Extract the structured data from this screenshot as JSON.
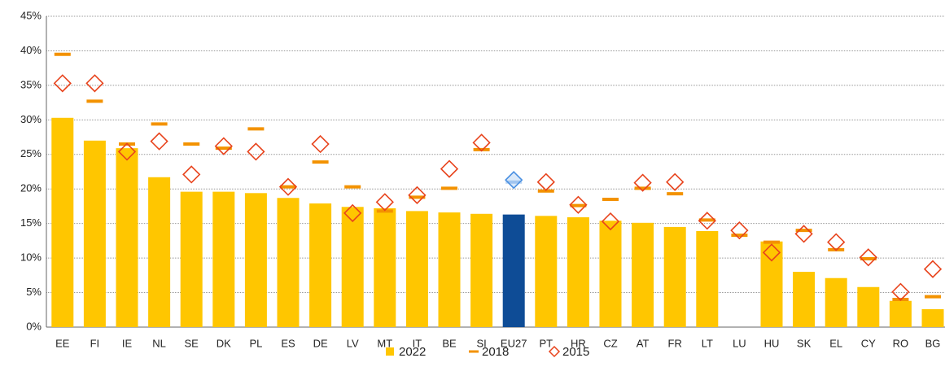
{
  "chart_data": {
    "type": "bar",
    "categories": [
      "EE",
      "FI",
      "IE",
      "NL",
      "SE",
      "DK",
      "PL",
      "ES",
      "DE",
      "LV",
      "MT",
      "IT",
      "BE",
      "SI",
      "EU27",
      "PT",
      "HR",
      "CZ",
      "AT",
      "FR",
      "LT",
      "LU",
      "HU",
      "SK",
      "EL",
      "CY",
      "RO",
      "BG"
    ],
    "series": [
      {
        "name": "2022",
        "kind": "bar",
        "color": "#ffc600",
        "values": [
          30.3,
          27.0,
          25.9,
          21.7,
          19.6,
          19.6,
          19.4,
          18.7,
          17.9,
          17.4,
          17.2,
          16.8,
          16.6,
          16.4,
          16.3,
          16.1,
          15.9,
          15.4,
          15.1,
          14.5,
          13.9,
          null,
          12.4,
          8.0,
          7.1,
          5.8,
          3.8,
          2.6
        ]
      },
      {
        "name": "2018",
        "kind": "dash",
        "color": "#f39200",
        "values": [
          39.5,
          32.7,
          26.5,
          29.4,
          26.5,
          25.9,
          28.7,
          20.3,
          23.9,
          20.3,
          16.8,
          18.8,
          20.1,
          25.7,
          21.0,
          19.7,
          17.6,
          18.5,
          20.1,
          19.3,
          15.5,
          13.3,
          12.3,
          14.0,
          11.2,
          9.9,
          4.0,
          4.4
        ]
      },
      {
        "name": "2015",
        "kind": "diamond",
        "color": "#e8431c",
        "values": [
          35.3,
          35.3,
          25.4,
          26.9,
          22.1,
          26.2,
          25.4,
          20.3,
          26.5,
          16.5,
          18.1,
          19.1,
          22.9,
          26.7,
          21.3,
          21.0,
          17.7,
          15.3,
          20.9,
          21.0,
          15.4,
          14.0,
          10.8,
          13.5,
          12.3,
          10.1,
          5.1,
          8.4
        ]
      }
    ],
    "highlight_category": "EU27",
    "highlight_colors": {
      "bar": "#0e4c96",
      "marker": "#4a90e2"
    },
    "ylim": [
      0,
      45
    ],
    "yticks": [
      {
        "value": 0,
        "label": "0%"
      },
      {
        "value": 5,
        "label": "5%"
      },
      {
        "value": 10,
        "label": "10%"
      },
      {
        "value": 15,
        "label": "15%"
      },
      {
        "value": 20,
        "label": "20%"
      },
      {
        "value": 25,
        "label": "25%"
      },
      {
        "value": 30,
        "label": "30%"
      },
      {
        "value": 35,
        "label": "35%"
      },
      {
        "value": 40,
        "label": "40%"
      },
      {
        "value": 45,
        "label": "45%"
      }
    ],
    "grid": true,
    "legend": "bottom"
  }
}
